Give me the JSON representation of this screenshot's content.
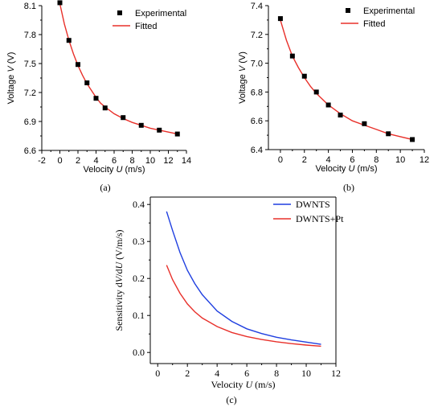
{
  "chart_data": [
    {
      "panel": "(a)",
      "type": "scatter",
      "xlabel_prefix": "Velocity ",
      "xlabel_var": "U",
      "xlabel_unit": " (m/s)",
      "ylabel_prefix": "Voltage ",
      "ylabel_var": "V",
      "ylabel_unit": " (V)",
      "xlim": [
        -2,
        14
      ],
      "ylim": [
        6.6,
        8.1
      ],
      "xticks": [
        -2,
        0,
        2,
        4,
        6,
        8,
        10,
        12,
        14
      ],
      "yticks": [
        6.6,
        6.9,
        7.2,
        7.5,
        7.8,
        8.1
      ],
      "legend_position": "top-right",
      "series": [
        {
          "name": "Experimental",
          "kind": "markers",
          "color": "#000000",
          "x": [
            0,
            1,
            2,
            3,
            4,
            5,
            7,
            9,
            11,
            13
          ],
          "y": [
            8.13,
            7.74,
            7.49,
            7.3,
            7.14,
            7.04,
            6.94,
            6.86,
            6.81,
            6.77
          ]
        },
        {
          "name": "Fitted",
          "kind": "line",
          "color": "#e8302a",
          "x": [
            0,
            0.5,
            1,
            1.5,
            2,
            2.5,
            3,
            3.5,
            4,
            4.5,
            5,
            6,
            7,
            8,
            9,
            10,
            11,
            12,
            13
          ],
          "y": [
            8.12,
            7.91,
            7.74,
            7.6,
            7.48,
            7.38,
            7.29,
            7.22,
            7.15,
            7.09,
            7.05,
            6.98,
            6.93,
            6.89,
            6.86,
            6.83,
            6.81,
            6.79,
            6.77
          ]
        }
      ]
    },
    {
      "panel": "(b)",
      "type": "scatter",
      "xlabel_prefix": "Velocity ",
      "xlabel_var": "U",
      "xlabel_unit": " (m/s)",
      "ylabel_prefix": "Voltage ",
      "ylabel_var": "V",
      "ylabel_unit": " (V)",
      "xlim": [
        -1,
        12
      ],
      "ylim": [
        6.4,
        7.4
      ],
      "xticks": [
        0,
        2,
        4,
        6,
        8,
        10,
        12
      ],
      "yticks": [
        6.4,
        6.6,
        6.8,
        7.0,
        7.2,
        7.4
      ],
      "ytick_format": 1,
      "legend_position": "top-right",
      "series": [
        {
          "name": "Experimental",
          "kind": "markers",
          "color": "#000000",
          "x": [
            0,
            1,
            2,
            3,
            4,
            5,
            7,
            9,
            11
          ],
          "y": [
            7.31,
            7.05,
            6.91,
            6.8,
            6.71,
            6.64,
            6.58,
            6.51,
            6.47
          ]
        },
        {
          "name": "Fitted",
          "kind": "line",
          "color": "#e8302a",
          "x": [
            0,
            0.5,
            1,
            1.5,
            2,
            2.5,
            3,
            3.5,
            4,
            4.5,
            5,
            6,
            7,
            8,
            9,
            10,
            11
          ],
          "y": [
            7.3,
            7.16,
            7.05,
            6.97,
            6.9,
            6.84,
            6.79,
            6.75,
            6.71,
            6.68,
            6.65,
            6.6,
            6.57,
            6.54,
            6.51,
            6.49,
            6.47
          ]
        }
      ]
    },
    {
      "panel": "(c)",
      "type": "line",
      "xlabel_prefix": "Velocity ",
      "xlabel_var": "U",
      "xlabel_unit": " (m/s)",
      "ylabel_prefix": "Sensitivity d",
      "ylabel_var": "V",
      "ylabel_mid": "/d",
      "ylabel_var2": "U",
      "ylabel_unit": " (V/m/s)",
      "xlim": [
        -0.5,
        12
      ],
      "ylim": [
        -0.03,
        0.42
      ],
      "xticks": [
        0,
        2,
        4,
        6,
        8,
        10,
        12
      ],
      "yticks": [
        0.0,
        0.1,
        0.2,
        0.3,
        0.4
      ],
      "ytick_format": 1,
      "legend_position": "top-right",
      "series": [
        {
          "name": "DWNTS",
          "kind": "line",
          "color": "#1f3fe0",
          "x": [
            0.6,
            1.0,
            1.5,
            2.0,
            2.5,
            3.0,
            4.0,
            5.0,
            6.0,
            7.0,
            8.0,
            9.0,
            10.0,
            11.0
          ],
          "y": [
            0.381,
            0.33,
            0.27,
            0.222,
            0.186,
            0.156,
            0.112,
            0.084,
            0.064,
            0.051,
            0.041,
            0.034,
            0.028,
            0.022
          ]
        },
        {
          "name": "DWNTS+Pt",
          "kind": "line",
          "color": "#e8302a",
          "x": [
            0.6,
            1.0,
            1.5,
            2.0,
            2.5,
            3.0,
            4.0,
            5.0,
            6.0,
            7.0,
            8.0,
            9.0,
            10.0,
            11.0
          ],
          "y": [
            0.236,
            0.197,
            0.16,
            0.131,
            0.11,
            0.093,
            0.07,
            0.054,
            0.043,
            0.035,
            0.029,
            0.024,
            0.02,
            0.017
          ]
        }
      ]
    }
  ]
}
